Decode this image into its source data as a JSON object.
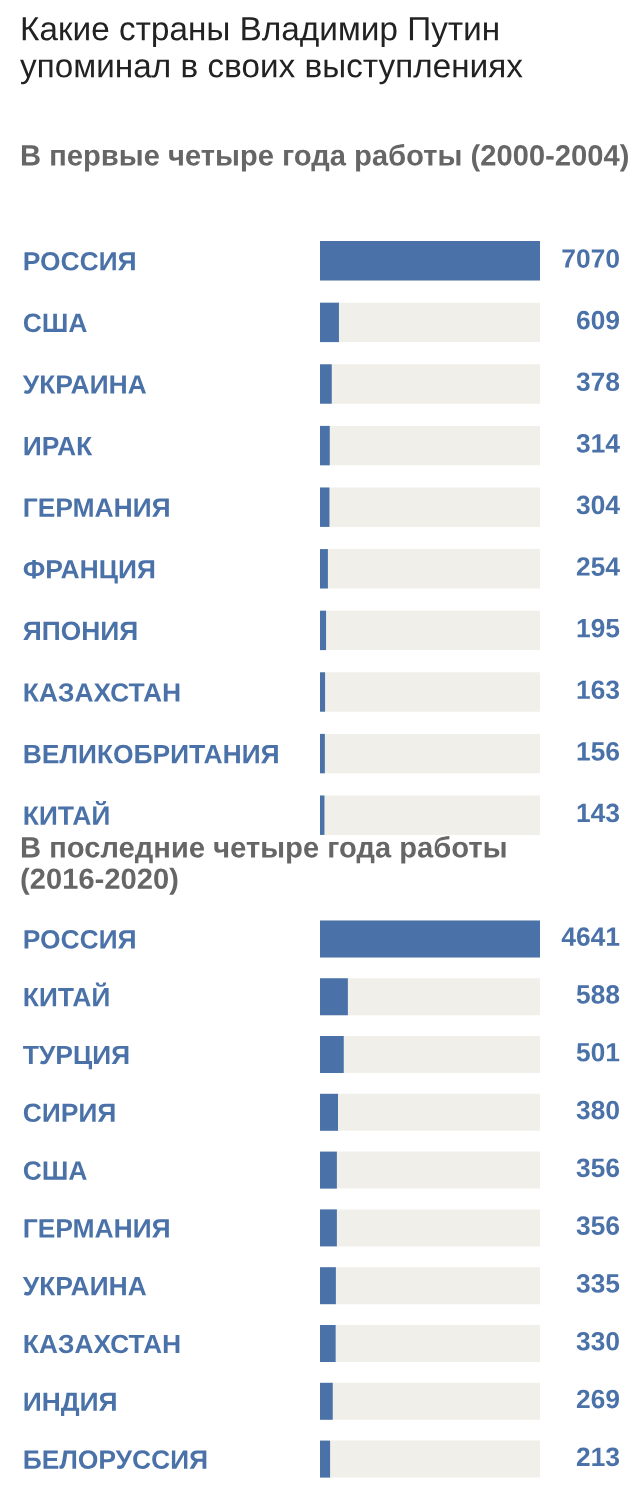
{
  "chart_data": [
    {
      "type": "bar",
      "orientation": "horizontal",
      "title": "Какие страны Владимир Путин упоминал в своих выступлениях",
      "subtitle": "В первые четыре года работы (2000-2004)",
      "categories": [
        "РОССИЯ",
        "США",
        "УКРАИНА",
        "ИРАК",
        "ГЕРМАНИЯ",
        "ФРАНЦИЯ",
        "ЯПОНИЯ",
        "КАЗАХСТАН",
        "ВЕЛИКОБРИТАНИЯ",
        "КИТАЙ"
      ],
      "values": [
        7070,
        609,
        378,
        314,
        304,
        254,
        195,
        163,
        156,
        143
      ],
      "color": "#4a72a8",
      "xlim": [
        0,
        7070
      ],
      "data_labels": true,
      "grid": false,
      "legend": false
    },
    {
      "type": "bar",
      "orientation": "horizontal",
      "subtitle": "В последние четыре года работы (2016-2020)",
      "categories": [
        "РОССИЯ",
        "КИТАЙ",
        "ТУРЦИЯ",
        "СИРИЯ",
        "США",
        "ГЕРМАНИЯ",
        "УКРАИНА",
        "КАЗАХСТАН",
        "ИНДИЯ",
        "БЕЛОРУССИЯ"
      ],
      "values": [
        4641,
        588,
        501,
        380,
        356,
        356,
        335,
        330,
        269,
        213
      ],
      "color": "#4a72a8",
      "xlim": [
        0,
        4641
      ],
      "data_labels": true,
      "grid": false,
      "legend": false
    }
  ]
}
